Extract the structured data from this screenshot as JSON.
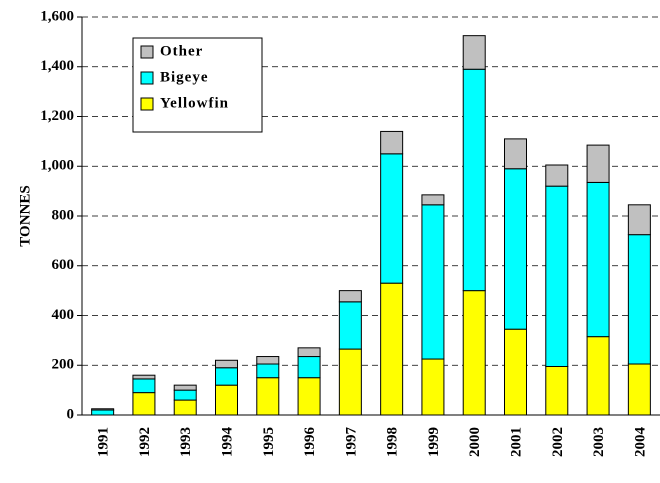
{
  "chart_data": {
    "type": "stacked_bar",
    "y_label": "TONNES",
    "categories": [
      "1991",
      "1992",
      "1993",
      "1994",
      "1995",
      "1996",
      "1997",
      "1998",
      "1999",
      "2000",
      "2001",
      "2002",
      "2003",
      "2004"
    ],
    "series": [
      {
        "name": "Yellowfin",
        "color": "#ffff00",
        "values": [
          0,
          90,
          60,
          120,
          150,
          150,
          265,
          530,
          225,
          500,
          345,
          195,
          315,
          205
        ]
      },
      {
        "name": "Bigeye",
        "color": "#00ffff",
        "values": [
          20,
          55,
          40,
          70,
          55,
          85,
          190,
          520,
          620,
          890,
          645,
          725,
          620,
          520
        ]
      },
      {
        "name": "Other",
        "color": "#c0c0c0",
        "values": [
          5,
          15,
          20,
          30,
          30,
          35,
          45,
          90,
          40,
          135,
          120,
          85,
          150,
          120
        ]
      }
    ],
    "ylim": [
      0,
      1600
    ],
    "yticks": [
      0,
      200,
      400,
      600,
      800,
      {
        "value": 1000,
        "label": "1,000"
      },
      {
        "value": 1200,
        "label": "1,200"
      },
      {
        "value": 1400,
        "label": "1,400"
      },
      {
        "value": 1600,
        "label": "1,600"
      }
    ],
    "grid": true,
    "legend": "top-left"
  }
}
